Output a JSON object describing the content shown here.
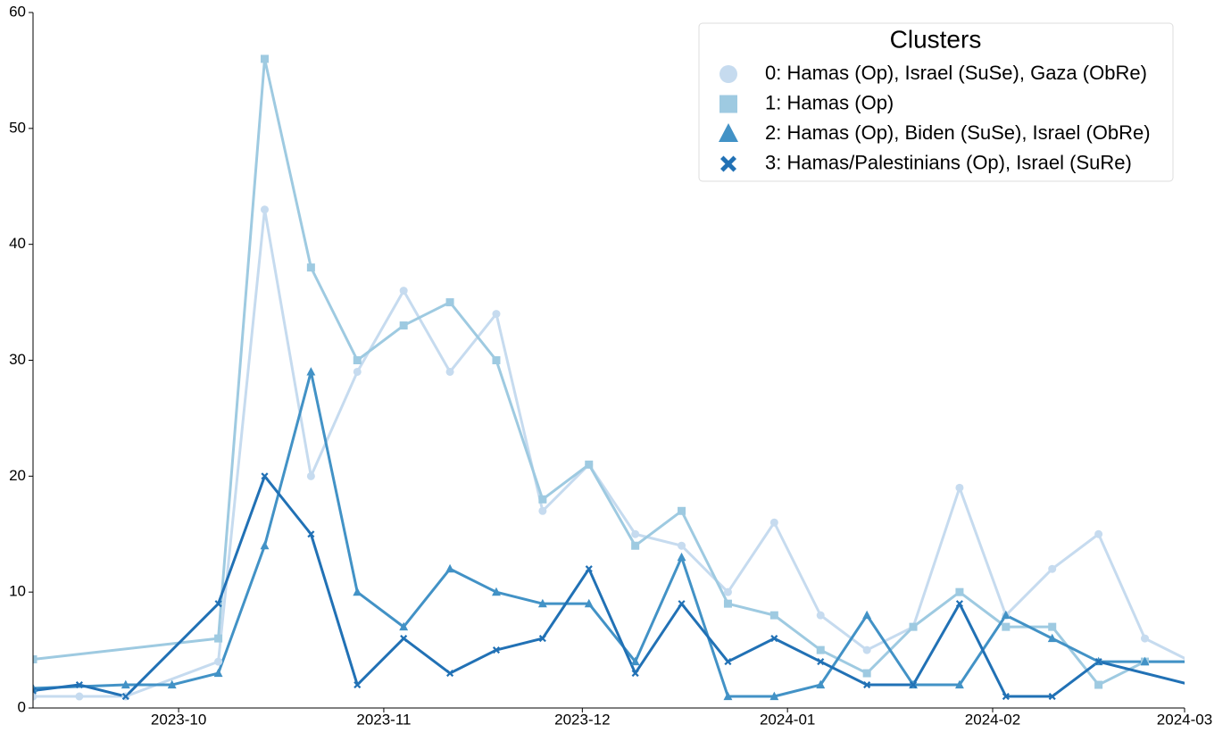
{
  "chart_data": {
    "type": "line",
    "legend_title": "Clusters",
    "legend": "upper right",
    "xlim": [
      "2023-09-09",
      "2024-03-01"
    ],
    "xticks": [
      {
        "value": "2023-10-01",
        "label": "2023-10"
      },
      {
        "value": "2023-11-01",
        "label": "2023-11"
      },
      {
        "value": "2023-12-01",
        "label": "2023-12"
      },
      {
        "value": "2024-01-01",
        "label": "2024-01"
      },
      {
        "value": "2024-02-01",
        "label": "2024-02"
      },
      {
        "value": "2024-03-01",
        "label": "2024-03"
      }
    ],
    "ylim": [
      0,
      60
    ],
    "yticks": [
      0,
      10,
      20,
      30,
      40,
      50,
      60
    ],
    "series": [
      {
        "name": "0: Hamas (Op), Israel (SuSe), Gaza (ObRe)",
        "color": "#c6dbef",
        "marker": "circle",
        "x": [
          "2023-09-09",
          "2023-09-16",
          "2023-09-23",
          "2023-10-07",
          "2023-10-14",
          "2023-10-21",
          "2023-10-28",
          "2023-11-04",
          "2023-11-11",
          "2023-11-18",
          "2023-11-25",
          "2023-12-02",
          "2023-12-09",
          "2023-12-16",
          "2023-12-23",
          "2023-12-30",
          "2024-01-06",
          "2024-01-13",
          "2024-01-20",
          "2024-01-27",
          "2024-02-03",
          "2024-02-10",
          "2024-02-17",
          "2024-02-24",
          "2024-03-02"
        ],
        "values": [
          1,
          1,
          1,
          4,
          43,
          20,
          29,
          36,
          29,
          34,
          17,
          21,
          15,
          14,
          10,
          16,
          8,
          5,
          7,
          19,
          8,
          12,
          15,
          6,
          4
        ]
      },
      {
        "name": "1: Hamas (Op)",
        "color": "#9ecae1",
        "marker": "square",
        "x": [
          "2023-09-09",
          "2023-10-07",
          "2023-10-14",
          "2023-10-21",
          "2023-10-28",
          "2023-11-04",
          "2023-11-11",
          "2023-11-18",
          "2023-11-25",
          "2023-12-02",
          "2023-12-09",
          "2023-12-16",
          "2023-12-23",
          "2023-12-30",
          "2024-01-06",
          "2024-01-13",
          "2024-01-20",
          "2024-01-27",
          "2024-02-03",
          "2024-02-10",
          "2024-02-17",
          "2024-02-24",
          "2024-03-02"
        ],
        "values": [
          4.2,
          6,
          56,
          38,
          30,
          33,
          35,
          30,
          18,
          21,
          14,
          17,
          9,
          8,
          5,
          3,
          7,
          10,
          7,
          7,
          2,
          4,
          4
        ]
      },
      {
        "name": "2: Hamas (Op), Biden (SuSe), Israel (ObRe)",
        "color": "#4292c6",
        "marker": "triangle",
        "x": [
          "2023-09-09",
          "2023-09-23",
          "2023-09-30",
          "2023-10-07",
          "2023-10-14",
          "2023-10-21",
          "2023-10-28",
          "2023-11-04",
          "2023-11-11",
          "2023-11-18",
          "2023-11-25",
          "2023-12-02",
          "2023-12-09",
          "2023-12-16",
          "2023-12-23",
          "2023-12-30",
          "2024-01-06",
          "2024-01-13",
          "2024-01-20",
          "2024-01-27",
          "2024-02-03",
          "2024-02-10",
          "2024-02-17",
          "2024-02-24",
          "2024-03-02"
        ],
        "values": [
          1.7,
          2,
          2,
          3,
          14,
          29,
          10,
          7,
          12,
          10,
          9,
          9,
          4,
          13,
          1,
          1,
          2,
          8,
          2,
          2,
          8,
          6,
          4,
          4,
          4
        ]
      },
      {
        "name": "3: Hamas/Palestinians (Op), Israel (SuRe)",
        "color": "#2171b5",
        "marker": "x",
        "x": [
          "2023-09-09",
          "2023-09-16",
          "2023-09-23",
          "2023-10-07",
          "2023-10-14",
          "2023-10-21",
          "2023-10-28",
          "2023-11-04",
          "2023-11-11",
          "2023-11-18",
          "2023-11-25",
          "2023-12-02",
          "2023-12-09",
          "2023-12-16",
          "2023-12-23",
          "2023-12-30",
          "2024-01-06",
          "2024-01-13",
          "2024-01-20",
          "2024-01-27",
          "2024-02-03",
          "2024-02-10",
          "2024-02-17",
          "2024-03-02"
        ],
        "values": [
          1.5,
          2,
          1,
          9,
          20,
          15,
          2,
          6,
          3,
          5,
          6,
          12,
          3,
          9,
          4,
          6,
          4,
          2,
          2,
          9,
          1,
          1,
          4,
          2
        ]
      }
    ]
  }
}
